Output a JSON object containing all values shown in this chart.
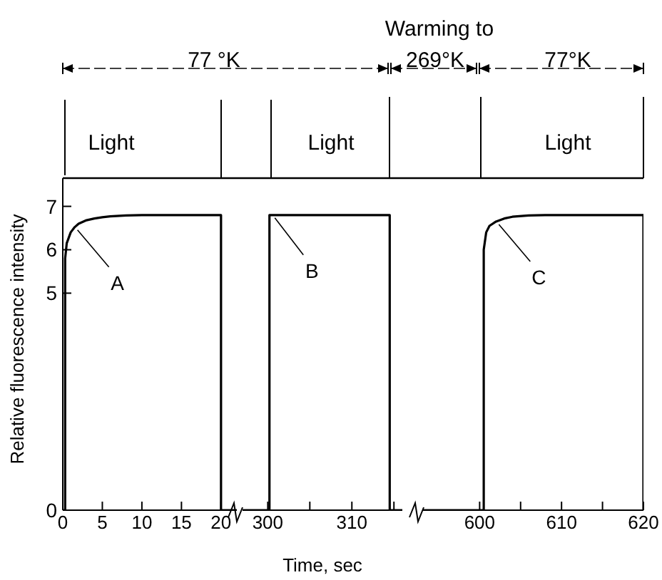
{
  "chart_data": [
    {
      "type": "line",
      "ylabel": "Relative fluorescence intensity",
      "xlim": [
        0,
        22
      ],
      "xticks": [
        0,
        5,
        10,
        15,
        20
      ],
      "ylim": [
        0,
        7.65
      ],
      "yticks": [
        0,
        5,
        6,
        7
      ],
      "grid": false,
      "legend": false,
      "marker": "none",
      "line_style": "solid",
      "series": [
        {
          "color": "#000000",
          "x": [
            0,
            0.3,
            0.3,
            0.5,
            1,
            1.5,
            2,
            3,
            4,
            5,
            6,
            8,
            10,
            12,
            20,
            20,
            22
          ],
          "values": [
            0,
            0,
            5.8,
            6.15,
            6.4,
            6.52,
            6.6,
            6.68,
            6.72,
            6.75,
            6.77,
            6.79,
            6.8,
            6.8,
            6.8,
            0,
            0
          ]
        }
      ],
      "annotations": [
        "Light",
        "77 °K",
        {
          "text": "A",
          "x": 1.5,
          "y": 6.52
        }
      ]
    },
    {
      "type": "line",
      "xlabel": "Time, sec",
      "xlim": [
        297,
        316
      ],
      "xticks": [
        300,
        {
          "value": 305,
          "label": null
        },
        310,
        {
          "value": 315,
          "label": null
        }
      ],
      "ylim": [
        0,
        7.65
      ],
      "tick_labels": "x",
      "grid": false,
      "legend": false,
      "marker": "none",
      "line_style": "solid",
      "series": [
        {
          "color": "#000000",
          "x": [
            297,
            300.2,
            300.2,
            314.5,
            314.5,
            316
          ],
          "values": [
            0,
            0,
            6.8,
            6.8,
            0,
            0
          ]
        }
      ],
      "annotations": [
        "Light",
        "Warming to",
        "269°K",
        {
          "text": "B",
          "x": 300.5,
          "y": 6.8
        }
      ]
    },
    {
      "type": "line",
      "xlim": [
        593,
        620
      ],
      "xticks": [
        600,
        {
          "value": 605,
          "label": null
        },
        610,
        {
          "value": 615,
          "label": null
        },
        620
      ],
      "ylim": [
        0,
        7.65
      ],
      "tick_labels": "x",
      "grid": false,
      "legend": false,
      "marker": "none",
      "line_style": "solid",
      "series": [
        {
          "color": "#000000",
          "x": [
            593,
            600.5,
            600.5,
            600.8,
            601.2,
            602,
            603,
            604,
            606,
            608,
            620,
            620
          ],
          "values": [
            0,
            0,
            6.0,
            6.4,
            6.55,
            6.65,
            6.72,
            6.76,
            6.79,
            6.8,
            6.8,
            0
          ]
        }
      ],
      "annotations": [
        "Light",
        "77°K",
        {
          "text": "C",
          "x": 602,
          "y": 6.65
        }
      ]
    }
  ]
}
